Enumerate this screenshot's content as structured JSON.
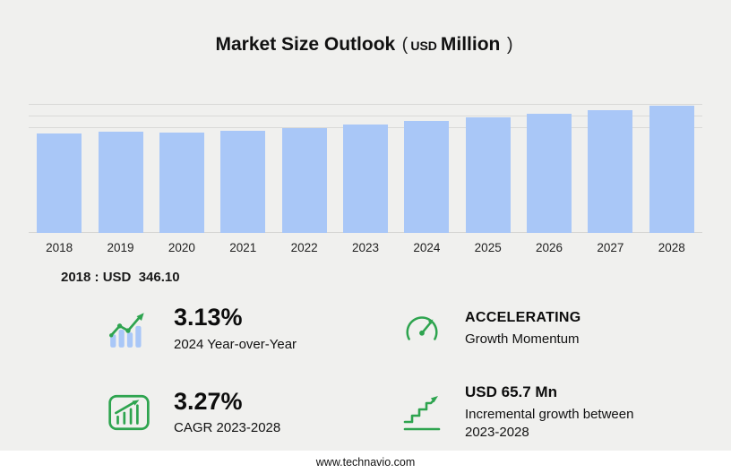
{
  "title": {
    "main": "Market Size Outlook",
    "paren_open": "(",
    "currency": "USD",
    "unit": "Million",
    "paren_close": ")"
  },
  "chart_data": {
    "type": "bar",
    "title": "Market Size Outlook (USD Million)",
    "categories": [
      "2018",
      "2019",
      "2020",
      "2021",
      "2022",
      "2023",
      "2024",
      "2025",
      "2026",
      "2027",
      "2028"
    ],
    "values": [
      346.1,
      351.0,
      348.5,
      355.0,
      363.5,
      376.7,
      388.5,
      400.6,
      413.5,
      427.3,
      442.4
    ],
    "ylabel": "USD Million",
    "xlabel": "",
    "ylim": [
      0,
      460
    ],
    "grid": true,
    "legend": false
  },
  "annotation": {
    "text": "2018 : USD  346.10"
  },
  "stats": [
    {
      "icon": "yoy-bars-icon",
      "value": "3.13%",
      "label": "2024 Year-over-Year"
    },
    {
      "icon": "speedometer-icon",
      "value": "ACCELERATING",
      "label": "Growth Momentum"
    },
    {
      "icon": "cagr-chart-icon",
      "value": "3.27%",
      "label": "CAGR 2023-2028"
    },
    {
      "icon": "incremental-growth-icon",
      "value": "USD 65.7 Mn",
      "label": "Incremental growth between 2023-2028"
    }
  ],
  "footer": {
    "url": "www.technavio.com"
  },
  "colors": {
    "accent_green": "#2ea44f",
    "bar_fill": "#a9c7f7",
    "background": "#f0f0ee"
  }
}
